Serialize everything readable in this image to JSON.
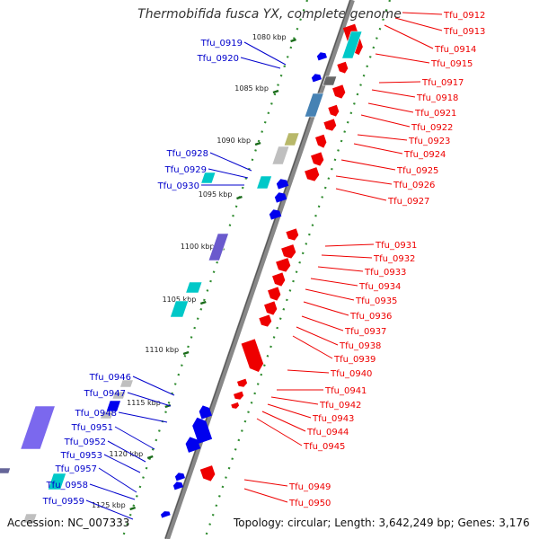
{
  "title": "Thermobifida fusca YX, complete genome",
  "accession": "Accession: NC_007333",
  "topology": "Topology: circular; Length: 3,642,249 bp; Genes: 3,176",
  "colors": {
    "backbone_outer": "#888888",
    "backbone_inner": "#555555",
    "dot_track": "#2e8b2e",
    "forward_label": "#ee0000",
    "reverse_label": "#0000cc"
  },
  "ticks": [
    {
      "label": "1080 kbp"
    },
    {
      "label": "1085 kbp"
    },
    {
      "label": "1090 kbp"
    },
    {
      "label": "1095 kbp"
    },
    {
      "label": "1100 kbp"
    },
    {
      "label": "1105 kbp"
    },
    {
      "label": "1110 kbp"
    },
    {
      "label": "1115 kbp"
    },
    {
      "label": "1120 kbp"
    },
    {
      "label": "1125 kbp"
    }
  ],
  "forward_genes": [
    {
      "name": "Tfu_0912"
    },
    {
      "name": "Tfu_0913"
    },
    {
      "name": "Tfu_0914"
    },
    {
      "name": "Tfu_0915"
    },
    {
      "name": "Tfu_0917"
    },
    {
      "name": "Tfu_0918"
    },
    {
      "name": "Tfu_0921"
    },
    {
      "name": "Tfu_0922"
    },
    {
      "name": "Tfu_0923"
    },
    {
      "name": "Tfu_0924"
    },
    {
      "name": "Tfu_0925"
    },
    {
      "name": "Tfu_0926"
    },
    {
      "name": "Tfu_0927"
    },
    {
      "name": "Tfu_0931"
    },
    {
      "name": "Tfu_0932"
    },
    {
      "name": "Tfu_0933"
    },
    {
      "name": "Tfu_0934"
    },
    {
      "name": "Tfu_0935"
    },
    {
      "name": "Tfu_0936"
    },
    {
      "name": "Tfu_0937"
    },
    {
      "name": "Tfu_0938"
    },
    {
      "name": "Tfu_0939"
    },
    {
      "name": "Tfu_0940"
    },
    {
      "name": "Tfu_0941"
    },
    {
      "name": "Tfu_0942"
    },
    {
      "name": "Tfu_0943"
    },
    {
      "name": "Tfu_0944"
    },
    {
      "name": "Tfu_0945"
    },
    {
      "name": "Tfu_0949"
    },
    {
      "name": "Tfu_0950"
    }
  ],
  "reverse_genes": [
    {
      "name": "Tfu_0919"
    },
    {
      "name": "Tfu_0920"
    },
    {
      "name": "Tfu_0928"
    },
    {
      "name": "Tfu_0929"
    },
    {
      "name": "Tfu_0930"
    },
    {
      "name": "Tfu_0946"
    },
    {
      "name": "Tfu_0947"
    },
    {
      "name": "Tfu_0948"
    },
    {
      "name": "Tfu_0951"
    },
    {
      "name": "Tfu_0952"
    },
    {
      "name": "Tfu_0953"
    },
    {
      "name": "Tfu_0957"
    },
    {
      "name": "Tfu_0958"
    },
    {
      "name": "Tfu_0959"
    }
  ]
}
